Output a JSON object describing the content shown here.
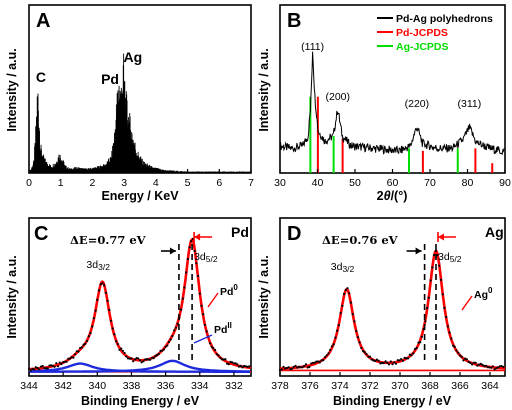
{
  "chart_data": [
    {
      "panel": "A",
      "type": "bar",
      "xlabel": "Energy / KeV",
      "ylabel": "Intensity / a.u.",
      "xlim": [
        0,
        7
      ],
      "xticks": [
        "0",
        "1",
        "2",
        "3",
        "4",
        "5",
        "6",
        "7"
      ],
      "peak_labels": [
        {
          "text": "C",
          "x": 0.28
        },
        {
          "text": "Pd",
          "x": 2.84
        },
        {
          "text": "Ag",
          "x": 2.98
        }
      ],
      "spectrum": {
        "x": [
          0.05,
          0.15,
          0.2,
          0.26,
          0.28,
          0.3,
          0.36,
          0.45,
          0.55,
          0.7,
          0.85,
          0.95,
          1.02,
          1.15,
          1.3,
          1.5,
          1.8,
          2.1,
          2.4,
          2.6,
          2.7,
          2.78,
          2.84,
          2.9,
          2.98,
          3.05,
          3.15,
          3.25,
          3.4,
          3.6,
          3.9,
          4.3,
          5.0,
          6.0,
          7.0
        ],
        "y": [
          0.02,
          0.08,
          0.25,
          0.55,
          0.62,
          0.52,
          0.2,
          0.12,
          0.08,
          0.05,
          0.08,
          0.14,
          0.12,
          0.05,
          0.03,
          0.04,
          0.03,
          0.04,
          0.06,
          0.12,
          0.3,
          0.55,
          0.68,
          0.6,
          0.8,
          0.55,
          0.42,
          0.3,
          0.16,
          0.08,
          0.04,
          0.02,
          0.01,
          0.01,
          0.01
        ]
      }
    },
    {
      "panel": "B",
      "type": "line",
      "xlabel": "2θ/(°)",
      "ylabel": "Intensity / a.u.",
      "xlim": [
        30,
        90
      ],
      "xticks": [
        "30",
        "40",
        "50",
        "60",
        "70",
        "80",
        "90"
      ],
      "legend": {
        "placement": "top-right",
        "entries": [
          {
            "name": "Pd-Ag polyhedrons",
            "color": "#000000"
          },
          {
            "name": "Pd-JCPDS",
            "color": "#ff0000"
          },
          {
            "name": "Ag-JCPDS",
            "color": "#00dd00"
          }
        ]
      },
      "peak_labels": [
        {
          "text": "(111)",
          "x": 38.7
        },
        {
          "text": "(200)",
          "x": 45.4
        },
        {
          "text": "(220)",
          "x": 66.5
        },
        {
          "text": "(311)",
          "x": 80.5
        }
      ],
      "pattern": {
        "x": [
          30,
          33,
          36,
          37.5,
          38.2,
          38.7,
          39.3,
          40.2,
          42,
          44.2,
          45.4,
          46.6,
          49,
          55,
          62,
          64.8,
          66.5,
          68,
          72,
          76,
          78.8,
          80.5,
          82.3,
          86,
          90
        ],
        "y": [
          0.22,
          0.2,
          0.22,
          0.3,
          0.55,
          1.0,
          0.62,
          0.34,
          0.26,
          0.3,
          0.52,
          0.3,
          0.22,
          0.2,
          0.18,
          0.22,
          0.38,
          0.24,
          0.2,
          0.2,
          0.27,
          0.37,
          0.25,
          0.2,
          0.17
        ]
      },
      "pd_ref": {
        "x": [
          40.1,
          46.7,
          68.1,
          82.1,
          86.6
        ],
        "h": [
          0.62,
          0.28,
          0.18,
          0.2,
          0.08
        ]
      },
      "ag_ref": {
        "x": [
          38.1,
          44.3,
          64.4,
          77.4
        ],
        "h": [
          0.62,
          0.3,
          0.2,
          0.2
        ]
      }
    },
    {
      "panel": "C",
      "type": "line",
      "xlabel": "Binding Energy / eV",
      "ylabel": "Intensity / a.u.",
      "xlim": [
        344,
        331
      ],
      "xticks": [
        "344",
        "342",
        "340",
        "338",
        "336",
        "334",
        "332"
      ],
      "element": "Pd",
      "delta_label": "ΔE=0.77 eV",
      "orbital_left": "3d3/2",
      "orbital_right": "3d5/2",
      "component_labels": [
        "Pd0",
        "PdII"
      ],
      "peaks": [
        {
          "center": 339.7,
          "height": 0.62,
          "width": 0.55
        },
        {
          "center": 334.45,
          "height": 0.92,
          "width": 0.55
        }
      ],
      "pd2_peaks": [
        {
          "center": 341.0,
          "height": 0.06,
          "width": 0.9
        },
        {
          "center": 335.6,
          "height": 0.08,
          "width": 0.9
        }
      ],
      "baseline": 0.03,
      "dashed_at": [
        335.22,
        334.45
      ]
    },
    {
      "panel": "D",
      "type": "line",
      "xlabel": "Binding Energy / eV",
      "ylabel": "Intensity / a.u.",
      "xlim": [
        378,
        363
      ],
      "xticks": [
        "378",
        "376",
        "374",
        "372",
        "370",
        "368",
        "366",
        "364"
      ],
      "element": "Ag",
      "delta_label": "ΔE=0.76 eV",
      "orbital_left": "3d3/2",
      "orbital_right": "3d5/2",
      "component_labels": [
        "Ag0"
      ],
      "peaks": [
        {
          "center": 373.55,
          "height": 0.58,
          "width": 0.6
        },
        {
          "center": 367.6,
          "height": 0.86,
          "width": 0.6
        }
      ],
      "baseline": 0.04,
      "dashed_at": [
        368.36,
        367.6
      ]
    }
  ]
}
